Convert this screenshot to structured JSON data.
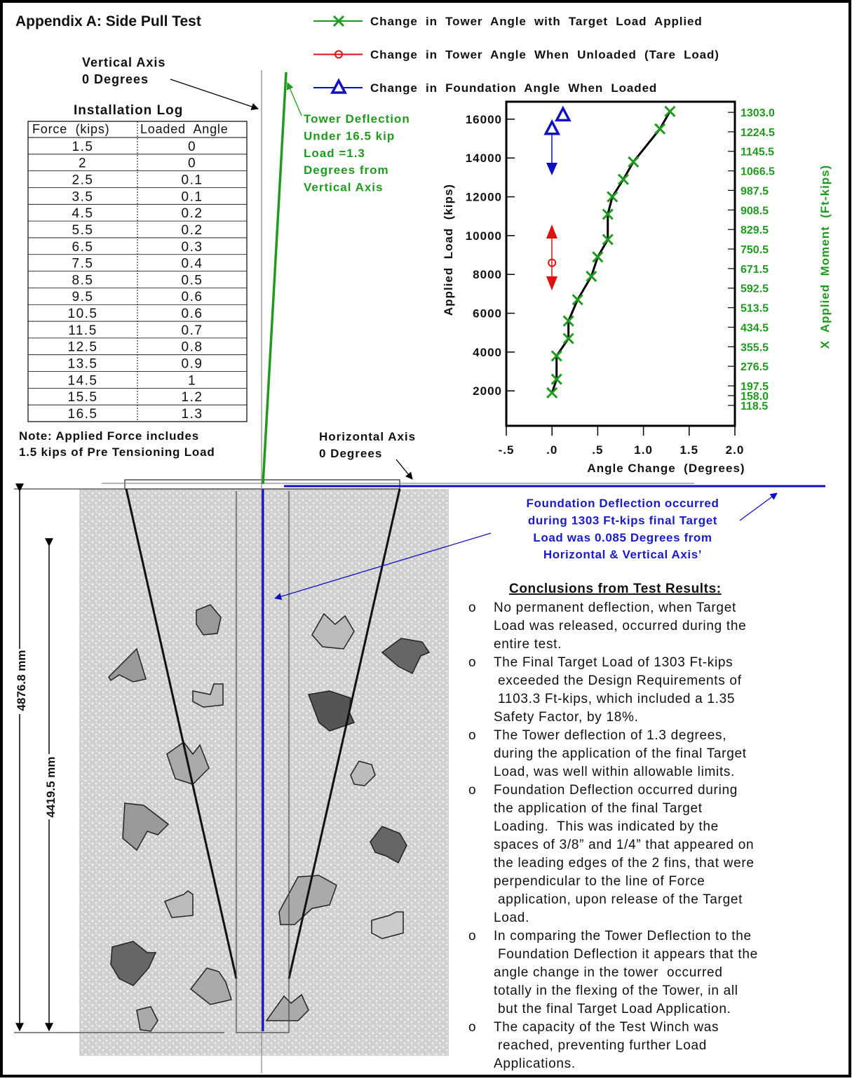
{
  "title": "Appendix A:  Side Pull Test",
  "vertical_axis": [
    "Vertical  Axis",
    "0  Degrees"
  ],
  "installation_log": {
    "title": "Installation Log",
    "header": [
      "Force  (kips)",
      "Loaded  Angle"
    ],
    "rows": [
      [
        1.5,
        0
      ],
      [
        2,
        0
      ],
      [
        2.5,
        0.1
      ],
      [
        3.5,
        0.1
      ],
      [
        4.5,
        0.2
      ],
      [
        5.5,
        0.2
      ],
      [
        6.5,
        0.3
      ],
      [
        7.5,
        0.4
      ],
      [
        8.5,
        0.5
      ],
      [
        9.5,
        0.6
      ],
      [
        10.5,
        0.6
      ],
      [
        11.5,
        0.7
      ],
      [
        12.5,
        0.8
      ],
      [
        13.5,
        0.9
      ],
      [
        14.5,
        1
      ],
      [
        15.5,
        1.2
      ],
      [
        16.5,
        1.3
      ]
    ]
  },
  "note": [
    "Note: Applied Force includes",
    "1.5 kips of Pre Tensioning Load"
  ],
  "tower_deflection": [
    "Tower  Deflection",
    "Under  16.5  kip",
    "Load   =1.3",
    "Degrees  from",
    "Vertical  Axis"
  ],
  "horizontal_axis": [
    "Horizontal  Axis",
    "0  Degrees"
  ],
  "foundation_deflection": [
    "Foundation Deflection occurred",
    "during 1303 Ft-kips final Target",
    "Load was 0.085 Degrees from",
    "Horizontal & Vertical Axis’"
  ],
  "conclusions": {
    "title": "Conclusions from Test Results:",
    "bullet": "o",
    "items": [
      [
        "No permanent deflection, when Target",
        "Load was released, occurred during the",
        "entire test."
      ],
      [
        "The Final Target Load of 1303 Ft-kips",
        " exceeded the Design Requirements of",
        " 1103.3 Ft-kips, which included a 1.35",
        "Safety Factor, by 18%."
      ],
      [
        "The Tower deflection of 1.3 degrees,",
        "during the application of the final Target",
        "Load, was well within allowable limits."
      ],
      [
        "Foundation Deflection occurred during",
        "the application of the final Target",
        "Loading.  This was indicated by the",
        "spaces of 3/8” and 1/4” that appeared on",
        "the leading edges of the 2 fins, that were",
        "perpendicular to the line of Force",
        " application, upon release of the Target",
        "Load."
      ],
      [
        "In comparing the Tower Deflection to the",
        " Foundation Deflection it appears that the",
        "angle change in the tower  occurred",
        "totally in the flexing of the Tower, in all",
        " but the final Target Load Application."
      ],
      [
        "The capacity of the Test Winch was",
        " reached, preventing further Load",
        "Applications."
      ]
    ]
  },
  "dimensions": [
    "4876.8  mm",
    "4419.5  mm"
  ],
  "chart_data": {
    "type": "scatter",
    "xlabel": "Angle Change  (Degrees)",
    "ylabel": "Applied  Load  (kips)",
    "y2label": "X  Applied  Moment  (Ft-kips)",
    "xlim": [
      -0.5,
      2.0
    ],
    "xticks": [
      {
        "value": -0.5,
        "label": "-.5"
      },
      {
        "value": 0,
        "label": ".0"
      },
      {
        "value": 0.5,
        "label": ".5"
      },
      {
        "value": 1,
        "label": "1.0"
      },
      1.5,
      {
        "value": 2,
        "label": "2.0"
      }
    ],
    "ylim": [
      200,
      16900
    ],
    "yticks": [
      2000,
      4000,
      6000,
      8000,
      10000,
      12000,
      14000,
      16000
    ],
    "y2lim": [
      36,
      1346
    ],
    "y2ticks": [
      {
        "value": 1303,
        "label": "1303.0"
      },
      1224.5,
      1145.5,
      1066.5,
      987.5,
      908.5,
      829.5,
      750.5,
      671.5,
      592.5,
      513.5,
      434.5,
      355.5,
      276.5,
      197.5,
      {
        "value": 158,
        "label": "158.0"
      },
      118.5
    ],
    "y2color": "#1f9a1f",
    "series": [
      {
        "name": "Change  in  Tower  Angle  with  Target  Load  Applied",
        "color": "#1f9a1f",
        "marker": "x",
        "connector_color": "#000000",
        "x": [
          0,
          0.05,
          0.05,
          0.18,
          0.18,
          0.28,
          0.43,
          0.5,
          0.61,
          0.61,
          0.66,
          0.78,
          0.89,
          1.18,
          1.29
        ],
        "values": [
          1900,
          2600,
          3800,
          4700,
          5600,
          6700,
          7900,
          8900,
          9800,
          11100,
          12000,
          12900,
          13800,
          15500,
          16400
        ]
      },
      {
        "name": "Change  in  Tower  Angle  When  Unloaded  (Tare  Load)",
        "color": "#e01010",
        "marker": "o",
        "x": [
          0
        ],
        "values": [
          8600
        ]
      },
      {
        "name": "Change  in  Foundation  Angle  When  Loaded",
        "color": "#1010c0",
        "marker": "triangle",
        "x": [
          0,
          0.12
        ],
        "values": [
          15500,
          16200
        ]
      }
    ]
  }
}
